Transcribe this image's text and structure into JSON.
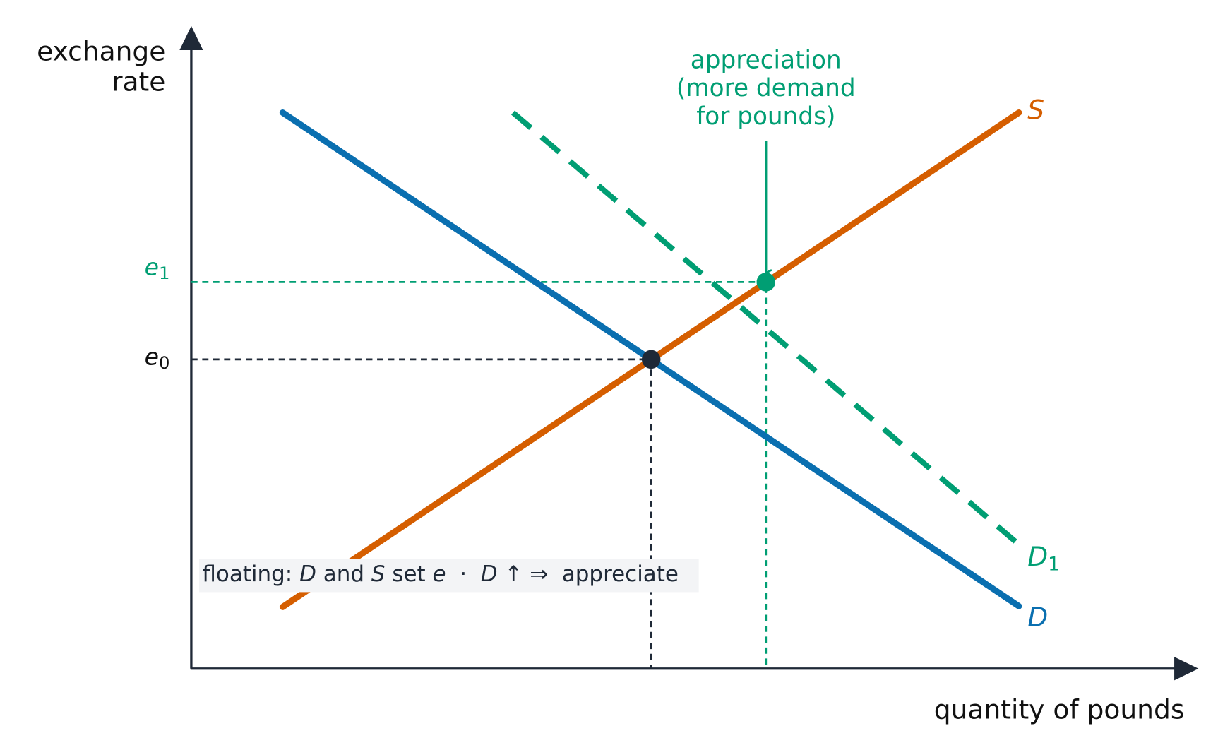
{
  "y_axis_label": [
    "exchange",
    "rate"
  ],
  "x_axis_label": "quantity of pounds",
  "annotation": [
    "appreciation",
    "(more demand",
    "for pounds)"
  ],
  "curves": {
    "supply": "S",
    "demand": "D",
    "new_demand": {
      "letter": "D",
      "subscript": "1"
    }
  },
  "levels": {
    "e0": {
      "letter": "e",
      "subscript": "0"
    },
    "e1": {
      "letter": "e",
      "subscript": "1"
    }
  },
  "note": [
    "floating: ",
    "D",
    " and ",
    "S",
    " set ",
    "e",
    "  ·  ",
    "D",
    " ↑ ⇒  appreciate"
  ]
}
